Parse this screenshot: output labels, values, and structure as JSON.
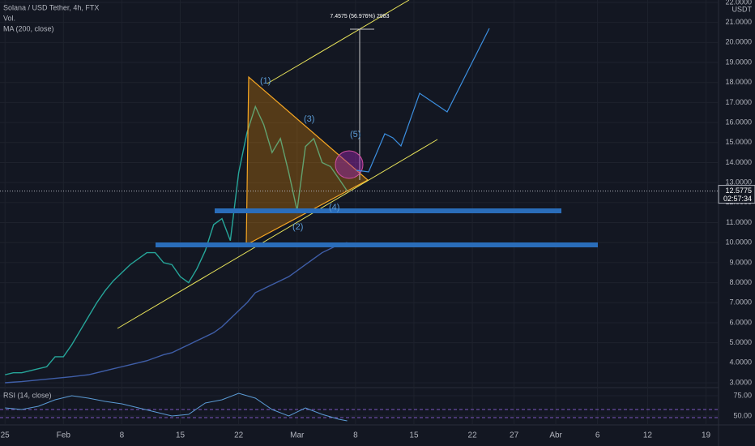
{
  "chart_data": {
    "type": "line",
    "title": "Solana / USD Tether, 4h, FTX",
    "legend_items": [
      "Vol.",
      "MA (200, close)"
    ],
    "currency": "USDT",
    "x": [
      0,
      1,
      2,
      3,
      4,
      5,
      6,
      7,
      8,
      9,
      10,
      11,
      12,
      13,
      14,
      15,
      16,
      17,
      18,
      19,
      20,
      21,
      22,
      23,
      24,
      25,
      26,
      27,
      28,
      29,
      30,
      31,
      32,
      33,
      34,
      35,
      36,
      37,
      38,
      39,
      40,
      41
    ],
    "series": [
      {
        "name": "Solana / USD Tether",
        "color": "#26a69a",
        "values": [
          3.4,
          3.5,
          3.5,
          3.6,
          3.7,
          3.8,
          4.3,
          4.3,
          4.9,
          5.6,
          6.3,
          7.0,
          7.6,
          8.1,
          8.5,
          8.9,
          9.2,
          9.5,
          9.5,
          9.0,
          8.9,
          8.3,
          8.0,
          8.7,
          9.6,
          10.9,
          11.2,
          10.1,
          13.5,
          15.5,
          16.8,
          15.9,
          14.5,
          15.2,
          13.5,
          11.6,
          14.8,
          15.2,
          14.0,
          13.8,
          13.2,
          12.58
        ]
      },
      {
        "name": "MA (200, close)",
        "color": "#3f5ea8",
        "values": [
          3.0,
          3.03,
          3.06,
          3.1,
          3.14,
          3.18,
          3.22,
          3.26,
          3.3,
          3.35,
          3.4,
          3.5,
          3.6,
          3.7,
          3.8,
          3.9,
          4.0,
          4.1,
          4.25,
          4.4,
          4.5,
          4.7,
          4.9,
          5.1,
          5.3,
          5.5,
          5.8,
          6.2,
          6.6,
          7.0,
          7.5,
          7.7,
          7.9,
          8.1,
          8.3,
          8.6,
          8.9,
          9.2,
          9.5,
          9.7,
          9.9,
          10.0
        ]
      }
    ],
    "xlim": [
      -0.6,
      85.5
    ],
    "xticks": [
      {
        "value": 0,
        "label": "25"
      },
      {
        "value": 7,
        "label": "Feb"
      },
      {
        "value": 14,
        "label": "8"
      },
      {
        "value": 21,
        "label": "15"
      },
      {
        "value": 28,
        "label": "22"
      },
      {
        "value": 35,
        "label": "Mar"
      },
      {
        "value": 42,
        "label": "8"
      },
      {
        "value": 49,
        "label": "15"
      },
      {
        "value": 56,
        "label": "22"
      },
      {
        "value": 61,
        "label": "27"
      },
      {
        "value": 66,
        "label": "Abr"
      },
      {
        "value": 71,
        "label": "6"
      },
      {
        "value": 77,
        "label": "12"
      },
      {
        "value": 84,
        "label": "19"
      }
    ],
    "ylim": [
      3,
      22
    ],
    "yticks": [
      {
        "value": 3,
        "label": "3.0000"
      },
      {
        "value": 4,
        "label": "4.0000"
      },
      {
        "value": 5,
        "label": "5.0000"
      },
      {
        "value": 6,
        "label": "6.0000"
      },
      {
        "value": 7,
        "label": "7.0000"
      },
      {
        "value": 8,
        "label": "8.0000"
      },
      {
        "value": 9,
        "label": "9.0000"
      },
      {
        "value": 10,
        "label": "10.0000"
      },
      {
        "value": 11,
        "label": "11.0000"
      },
      {
        "value": 12,
        "label": "12.0000"
      },
      {
        "value": 13,
        "label": "13.0000"
      },
      {
        "value": 14,
        "label": "14.0000"
      },
      {
        "value": 15,
        "label": "15.0000"
      },
      {
        "value": 16,
        "label": "16.0000"
      },
      {
        "value": 17,
        "label": "17.0000"
      },
      {
        "value": 18,
        "label": "18.0000"
      },
      {
        "value": 19,
        "label": "19.0000"
      },
      {
        "value": 20,
        "label": "20.0000"
      },
      {
        "value": 21,
        "label": "21.0000"
      },
      {
        "value": 22,
        "label": "22.0000"
      }
    ],
    "last_price": {
      "value": 12.5775,
      "label": "12.5775"
    },
    "countdown": "02:57:34",
    "annotations": [
      "(1)",
      "(2)",
      "(3)",
      "(4)",
      "(5)",
      "7.4575 (56.976%) 2983"
    ],
    "rsi": {
      "title": "RSI (14, close)",
      "color": "#5b9bd5",
      "ylim": [
        39,
        85
      ],
      "yticks": [
        {
          "value": 75,
          "label": "75.00"
        },
        {
          "value": 50,
          "label": "50.00"
        }
      ],
      "x": [
        0,
        2,
        4,
        6,
        8,
        10,
        12,
        14,
        16,
        18,
        20,
        22,
        24,
        26,
        28,
        30,
        32,
        34,
        36,
        38,
        40,
        41
      ],
      "values": [
        60,
        58,
        62,
        70,
        75,
        72,
        68,
        65,
        60,
        55,
        50,
        52,
        66,
        70,
        78,
        72,
        58,
        50,
        60,
        52,
        46,
        44
      ]
    }
  }
}
